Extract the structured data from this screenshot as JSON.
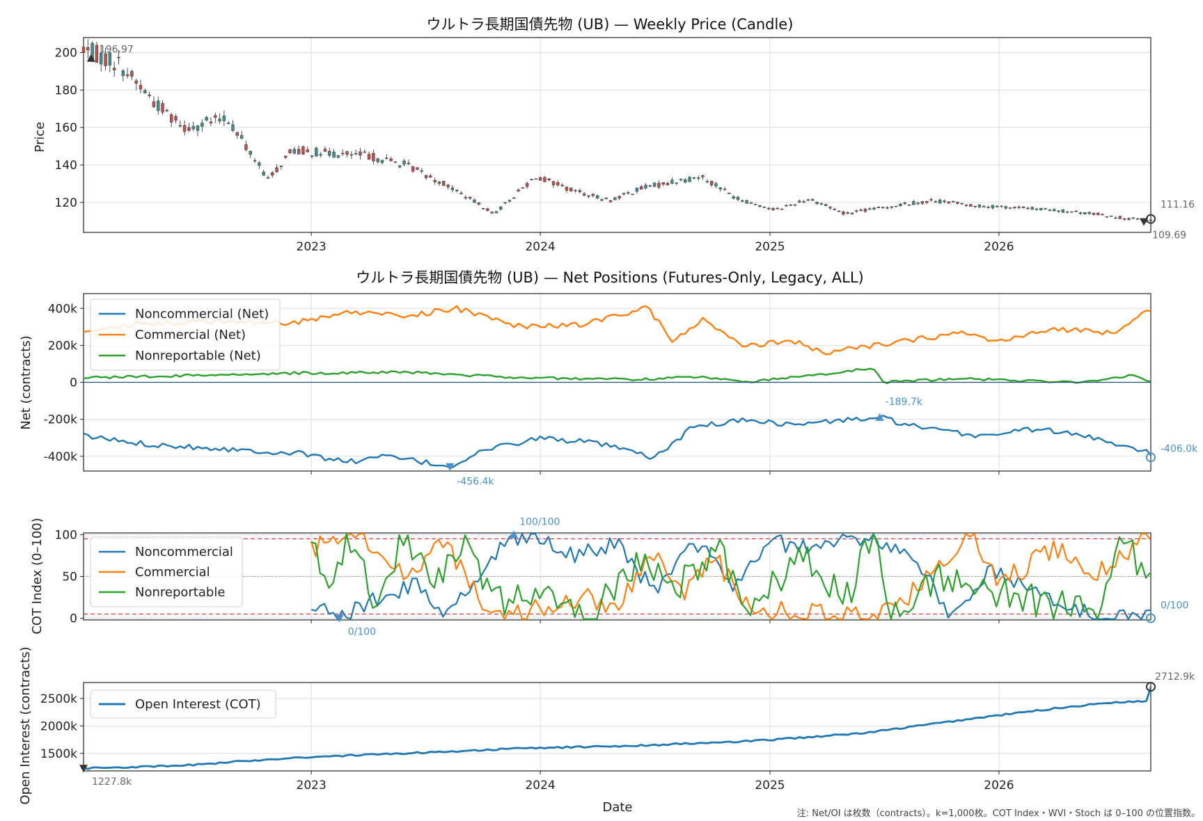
{
  "footnote": "注: Net/OI は枚数（contracts）。k=1,000枚。COT Index・WVI・Stoch は 0–100 の位置指数。",
  "xlabel": "Date",
  "x_ticks": [
    "2023",
    "2024",
    "2025",
    "2026"
  ],
  "colors": {
    "noncommercial": "#1f77b4",
    "commercial": "#ff7f0e",
    "nonreportable": "#2ca02c",
    "candle_up": "#3f8f8f",
    "candle_down": "#c0504d",
    "threshold": "#d62728"
  },
  "chart_data": [
    {
      "type": "candlestick",
      "title": "ウルトラ長期国債先物 (UB) — Weekly Price (Candle)",
      "ylabel": "Price",
      "xlim": [
        "2022-01-03",
        "2026-08-31"
      ],
      "ylim": [
        104,
        208
      ],
      "y_ticks": [
        "120",
        "140",
        "160",
        "180",
        "200"
      ],
      "anchors": [
        [
          "2022-01-03",
          202
        ],
        [
          "2022-03-01",
          194
        ],
        [
          "2022-05-01",
          172
        ],
        [
          "2022-06-15",
          160
        ],
        [
          "2022-08-20",
          165
        ],
        [
          "2022-10-25",
          132
        ],
        [
          "2022-12-01",
          148
        ],
        [
          "2023-02-01",
          146
        ],
        [
          "2023-04-01",
          145
        ],
        [
          "2023-06-01",
          140
        ],
        [
          "2023-08-01",
          130
        ],
        [
          "2023-10-20",
          114
        ],
        [
          "2023-12-25",
          134
        ],
        [
          "2024-02-15",
          127
        ],
        [
          "2024-04-20",
          121
        ],
        [
          "2024-06-15",
          128
        ],
        [
          "2024-09-15",
          134
        ],
        [
          "2024-11-10",
          122
        ],
        [
          "2025-01-10",
          116
        ],
        [
          "2025-03-05",
          122
        ],
        [
          "2025-05-01",
          114
        ],
        [
          "2025-08-01",
          119
        ],
        [
          "2025-09-20",
          121
        ],
        [
          "2025-12-01",
          118
        ],
        [
          "2026-02-15",
          117
        ],
        [
          "2026-06-01",
          114
        ],
        [
          "2026-08-25",
          110
        ]
      ],
      "annotations": [
        {
          "label": "196.97",
          "date": "2022-01-15",
          "value": 196.97,
          "marker": "up"
        },
        {
          "label": "109.69",
          "date": "2026-08-20",
          "value": 109.69,
          "marker": "down"
        },
        {
          "label": "111.16",
          "date": "2026-08-31",
          "value": 111.16,
          "marker": "circle"
        }
      ]
    },
    {
      "type": "line",
      "title": "ウルトラ長期国債先物 (UB) — Net Positions (Futures-Only, Legacy, ALL)",
      "ylabel": "Net (contracts)",
      "xlim": [
        "2022-01-03",
        "2026-08-31"
      ],
      "ylim": [
        -480,
        480
      ],
      "y_ticks": [
        "-400k",
        "-200k",
        "0",
        "200k",
        "400k"
      ],
      "series": [
        {
          "name": "Noncommercial (Net)",
          "anchors": [
            [
              "2022-01-03",
              -290
            ],
            [
              "2022-04-01",
              -330
            ],
            [
              "2022-07-01",
              -350
            ],
            [
              "2022-10-01",
              -370
            ],
            [
              "2022-12-15",
              -385
            ],
            [
              "2023-03-01",
              -430
            ],
            [
              "2023-05-01",
              -400
            ],
            [
              "2023-08-10",
              -456.4
            ],
            [
              "2023-10-01",
              -370
            ],
            [
              "2024-01-01",
              -300
            ],
            [
              "2024-04-01",
              -330
            ],
            [
              "2024-07-01",
              -410
            ],
            [
              "2024-09-01",
              -240
            ],
            [
              "2024-12-01",
              -200
            ],
            [
              "2025-02-01",
              -230
            ],
            [
              "2025-06-25",
              -189.7
            ],
            [
              "2025-09-01",
              -250
            ],
            [
              "2025-12-01",
              -290
            ],
            [
              "2026-03-01",
              -250
            ],
            [
              "2026-06-01",
              -300
            ],
            [
              "2026-08-25",
              -370
            ],
            [
              "2026-08-31",
              -406
            ]
          ]
        },
        {
          "name": "Commercial (Net)",
          "anchors": [
            [
              "2022-01-03",
              270
            ],
            [
              "2022-04-01",
              320
            ],
            [
              "2022-08-01",
              330
            ],
            [
              "2022-12-01",
              320
            ],
            [
              "2023-03-01",
              380
            ],
            [
              "2023-06-01",
              360
            ],
            [
              "2023-08-20",
              400
            ],
            [
              "2023-12-01",
              300
            ],
            [
              "2024-03-01",
              310
            ],
            [
              "2024-06-20",
              400
            ],
            [
              "2024-08-01",
              220
            ],
            [
              "2024-09-15",
              340
            ],
            [
              "2024-11-20",
              190
            ],
            [
              "2025-02-01",
              230
            ],
            [
              "2025-04-01",
              160
            ],
            [
              "2025-08-01",
              220
            ],
            [
              "2025-11-01",
              270
            ],
            [
              "2026-01-01",
              220
            ],
            [
              "2026-04-01",
              290
            ],
            [
              "2026-07-01",
              270
            ],
            [
              "2026-08-31",
              400
            ]
          ]
        },
        {
          "name": "Nonreportable (Net)",
          "anchors": [
            [
              "2022-01-03",
              25
            ],
            [
              "2022-06-01",
              35
            ],
            [
              "2022-12-01",
              50
            ],
            [
              "2023-06-01",
              55
            ],
            [
              "2023-12-01",
              25
            ],
            [
              "2024-06-01",
              15
            ],
            [
              "2024-09-01",
              30
            ],
            [
              "2024-12-01",
              5
            ],
            [
              "2025-04-01",
              45
            ],
            [
              "2025-06-15",
              80
            ],
            [
              "2025-07-01",
              0
            ],
            [
              "2025-11-01",
              20
            ],
            [
              "2026-05-01",
              0
            ],
            [
              "2026-08-01",
              35
            ],
            [
              "2026-08-31",
              5
            ]
          ]
        }
      ],
      "annotations": [
        {
          "label": "-456.4k",
          "date": "2023-08-10",
          "value": -456.4,
          "marker": "down"
        },
        {
          "label": "-189.7k",
          "date": "2025-06-25",
          "value": -189.7,
          "marker": "up"
        },
        {
          "label": "-406.0k",
          "date": "2026-08-31",
          "value": -406,
          "marker": "circle"
        }
      ]
    },
    {
      "type": "line",
      "ylabel": "COT Index (0–100)",
      "xlim": [
        "2022-01-03",
        "2026-08-31"
      ],
      "ylim": [
        -2,
        102
      ],
      "y_ticks": [
        "0",
        "50",
        "100"
      ],
      "reference_lines": [
        95,
        50,
        5
      ],
      "series": [
        {
          "name": "Noncommercial",
          "anchors": [
            [
              "2023-01-01",
              15
            ],
            [
              "2023-02-15",
              0
            ],
            [
              "2023-03-15",
              10
            ],
            [
              "2023-05-01",
              30
            ],
            [
              "2023-06-15",
              40
            ],
            [
              "2023-08-01",
              5
            ],
            [
              "2023-09-15",
              40
            ],
            [
              "2023-11-01",
              90
            ],
            [
              "2023-12-01",
              100
            ],
            [
              "2024-01-01",
              100
            ],
            [
              "2024-03-01",
              75
            ],
            [
              "2024-05-01",
              90
            ],
            [
              "2024-07-01",
              30
            ],
            [
              "2024-09-01",
              95
            ],
            [
              "2024-11-01",
              40
            ],
            [
              "2025-01-01",
              90
            ],
            [
              "2025-04-01",
              85
            ],
            [
              "2025-06-15",
              100
            ],
            [
              "2025-09-01",
              60
            ],
            [
              "2025-10-15",
              0
            ],
            [
              "2025-12-15",
              60
            ],
            [
              "2026-03-01",
              30
            ],
            [
              "2026-06-15",
              0
            ],
            [
              "2026-08-31",
              0
            ]
          ]
        },
        {
          "name": "Commercial",
          "anchors": [
            [
              "2023-01-01",
              80
            ],
            [
              "2023-02-01",
              100
            ],
            [
              "2023-04-01",
              95
            ],
            [
              "2023-06-01",
              50
            ],
            [
              "2023-08-01",
              95
            ],
            [
              "2023-10-01",
              15
            ],
            [
              "2023-12-01",
              5
            ],
            [
              "2024-03-01",
              25
            ],
            [
              "2024-05-01",
              15
            ],
            [
              "2024-07-01",
              80
            ],
            [
              "2024-08-15",
              25
            ],
            [
              "2024-10-01",
              80
            ],
            [
              "2024-12-01",
              5
            ],
            [
              "2025-03-01",
              10
            ],
            [
              "2025-06-15",
              0
            ],
            [
              "2025-09-01",
              40
            ],
            [
              "2025-11-15",
              100
            ],
            [
              "2026-01-01",
              40
            ],
            [
              "2026-04-01",
              85
            ],
            [
              "2026-06-01",
              50
            ],
            [
              "2026-08-31",
              100
            ]
          ]
        },
        {
          "name": "Nonreportable",
          "anchors": [
            [
              "2023-01-01",
              85
            ],
            [
              "2023-02-01",
              40
            ],
            [
              "2023-03-01",
              90
            ],
            [
              "2023-04-15",
              20
            ],
            [
              "2023-06-01",
              100
            ],
            [
              "2023-07-15",
              40
            ],
            [
              "2023-09-01",
              100
            ],
            [
              "2023-10-15",
              20
            ],
            [
              "2024-01-01",
              25
            ],
            [
              "2024-04-01",
              10
            ],
            [
              "2024-06-01",
              70
            ],
            [
              "2024-08-01",
              35
            ],
            [
              "2024-10-15",
              75
            ],
            [
              "2024-12-01",
              15
            ],
            [
              "2025-03-01",
              75
            ],
            [
              "2025-05-01",
              20
            ],
            [
              "2025-06-15",
              100
            ],
            [
              "2025-07-15",
              10
            ],
            [
              "2025-10-01",
              50
            ],
            [
              "2026-01-01",
              30
            ],
            [
              "2026-04-01",
              15
            ],
            [
              "2026-06-15",
              5
            ],
            [
              "2026-07-15",
              95
            ],
            [
              "2026-08-31",
              40
            ]
          ]
        }
      ],
      "annotations": [
        {
          "label": "0/100",
          "date": "2023-02-15",
          "value": 0,
          "marker": "down"
        },
        {
          "label": "100/100",
          "date": "2023-11-20",
          "value": 100,
          "marker": "up"
        },
        {
          "label": "0/100",
          "date": "2026-08-31",
          "value": 0,
          "marker": "circle"
        }
      ]
    },
    {
      "type": "line",
      "ylabel": "Open Interest (contracts)",
      "xlim": [
        "2022-01-03",
        "2026-08-31"
      ],
      "ylim": [
        1180,
        2790
      ],
      "y_ticks": [
        "1500k",
        "2000k",
        "2500k"
      ],
      "series": [
        {
          "name": "Open Interest (COT)",
          "anchors": [
            [
              "2022-01-03",
              1227.8
            ],
            [
              "2022-06-01",
              1270
            ],
            [
              "2022-12-01",
              1420
            ],
            [
              "2023-06-01",
              1500
            ],
            [
              "2023-12-01",
              1590
            ],
            [
              "2024-06-01",
              1640
            ],
            [
              "2024-12-01",
              1720
            ],
            [
              "2025-06-01",
              1870
            ],
            [
              "2025-12-01",
              2150
            ],
            [
              "2026-04-01",
              2320
            ],
            [
              "2026-07-01",
              2430
            ],
            [
              "2026-08-25",
              2450
            ],
            [
              "2026-08-31",
              2712.9
            ]
          ]
        }
      ],
      "annotations": [
        {
          "label": "1227.8k",
          "date": "2022-01-03",
          "value": 1227.8,
          "marker": "down"
        },
        {
          "label": "2712.9k",
          "date": "2026-08-31",
          "value": 2712.9,
          "marker": "circle"
        }
      ]
    }
  ]
}
